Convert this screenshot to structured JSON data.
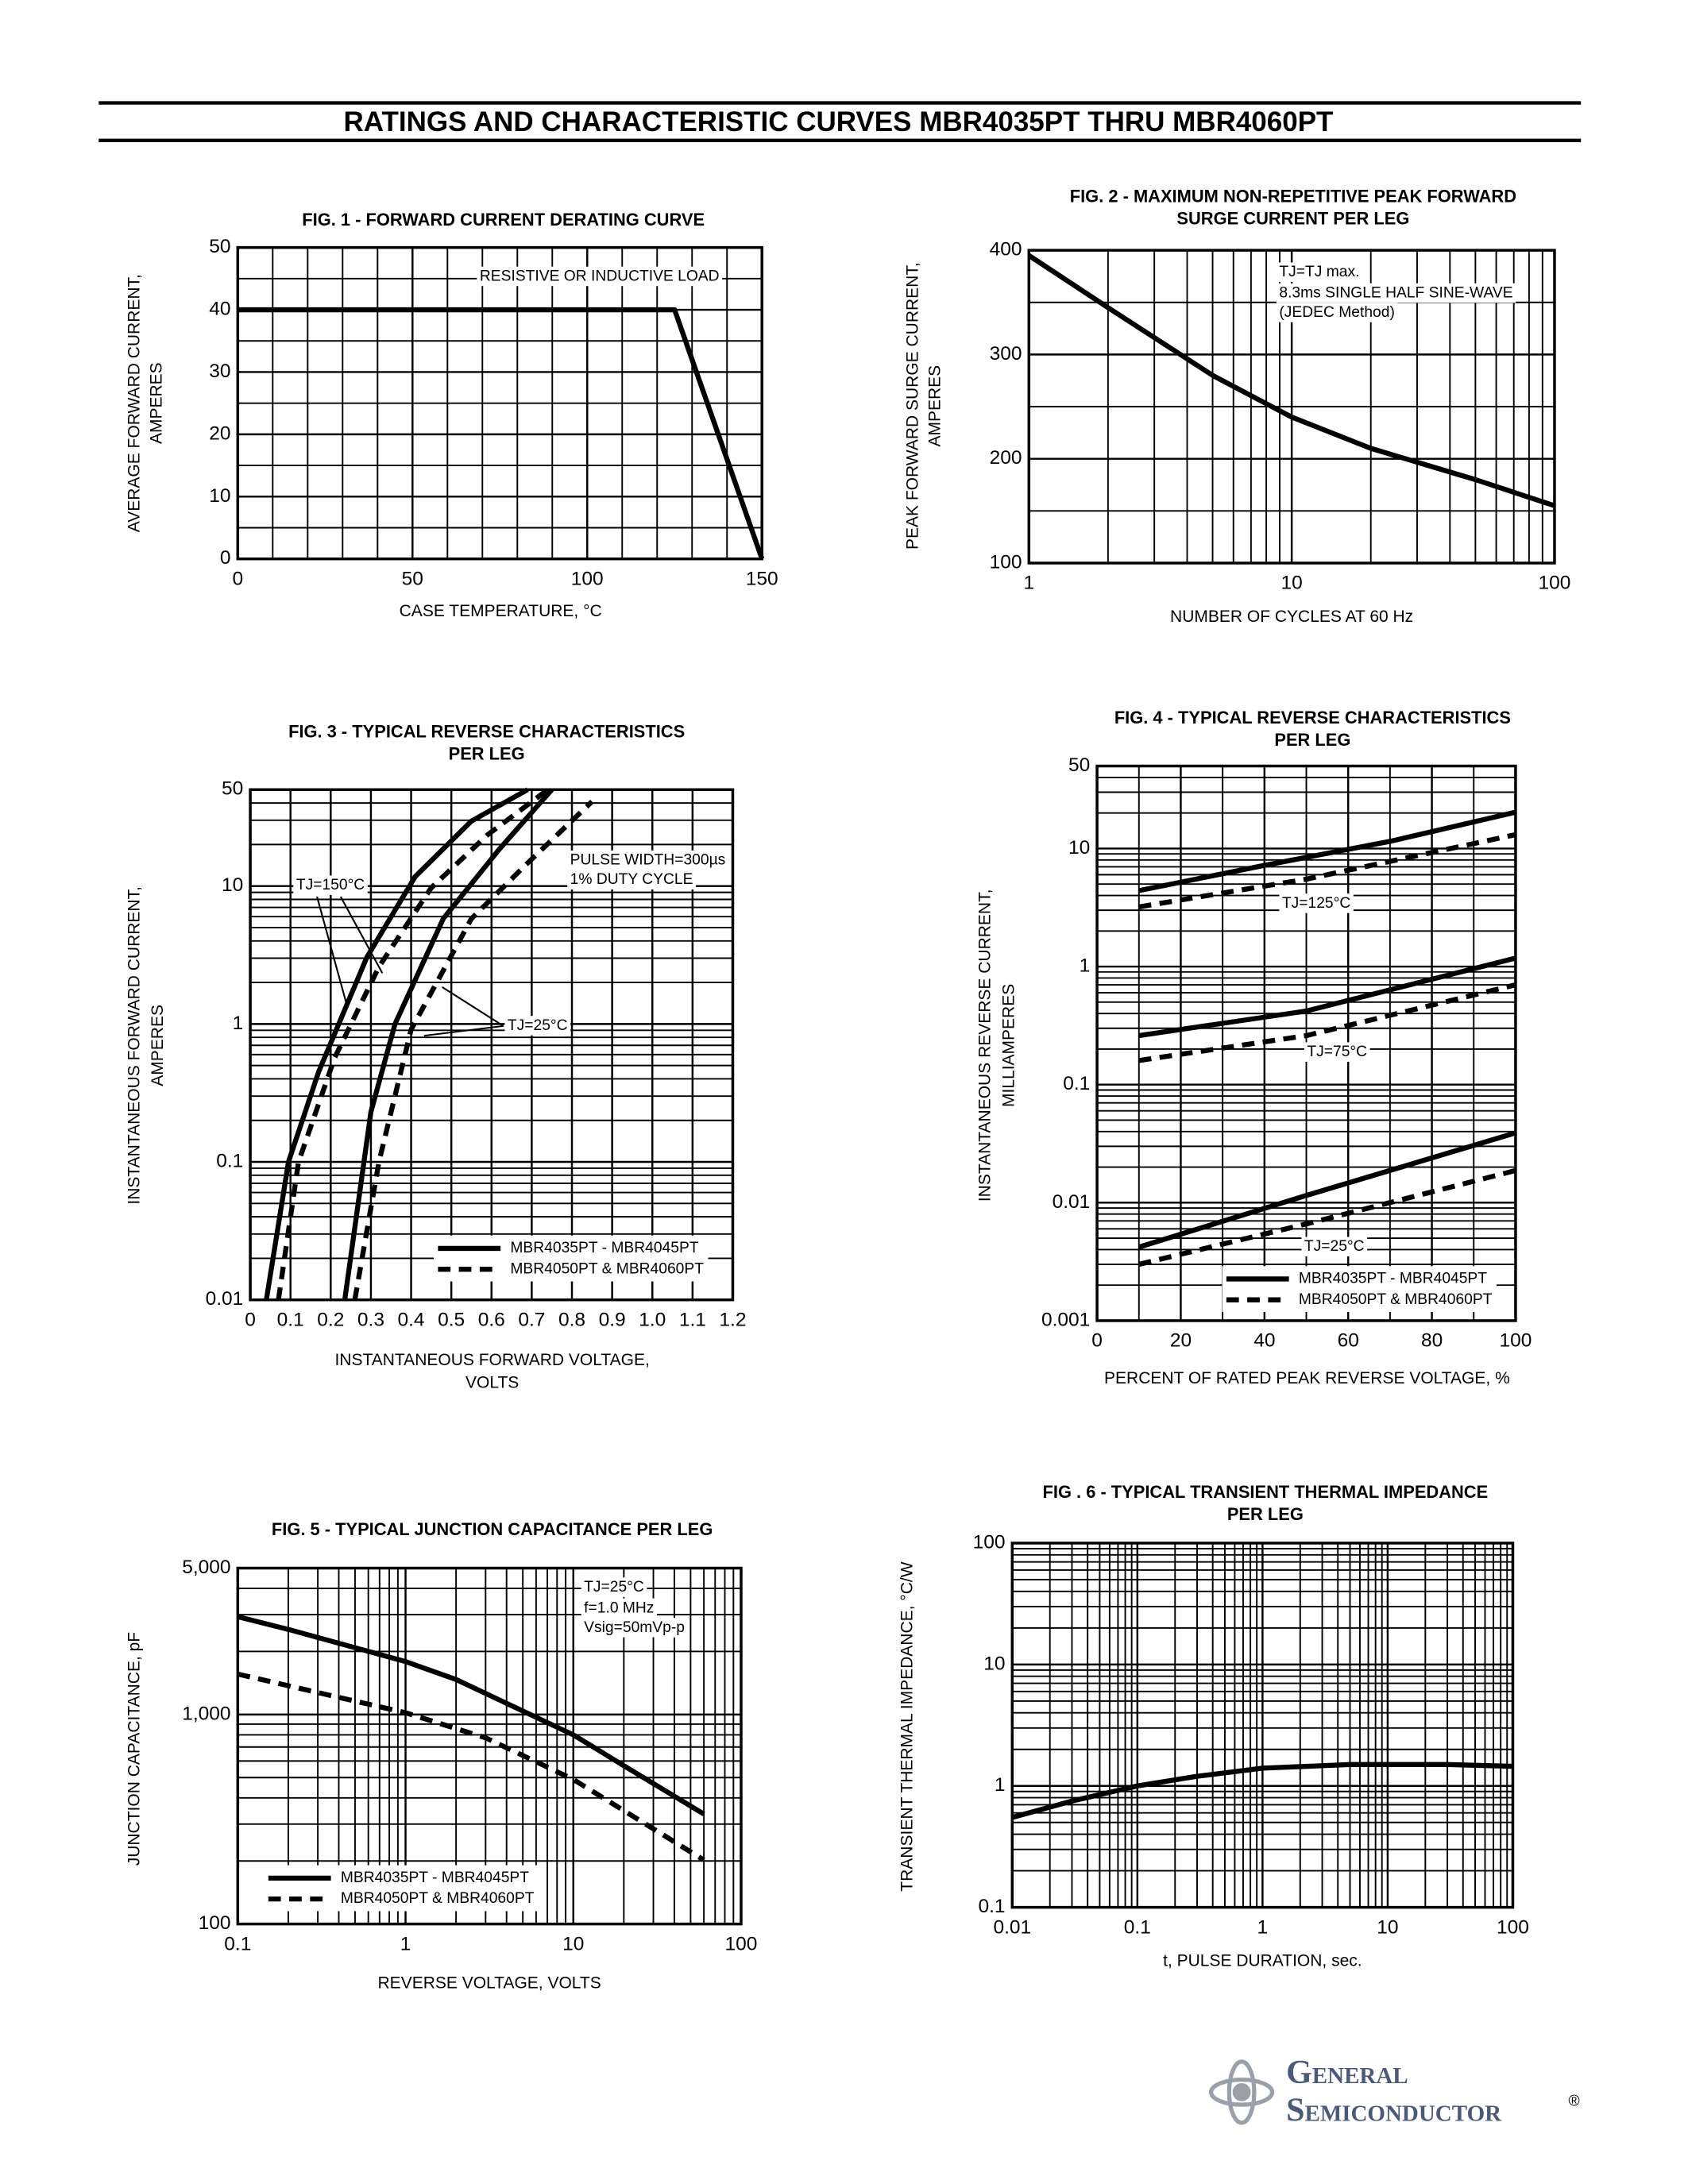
{
  "title": "RATINGS AND CHARACTERISTIC CURVES MBR4035PT THRU MBR4060PT",
  "logo": {
    "name1": "General",
    "name2": "Semiconductor",
    "mark": "®"
  },
  "chart_data": [
    {
      "type": "line",
      "title": [
        "FIG. 1 - FORWARD CURRENT DERATING CURVE"
      ],
      "xlabel": [
        "CASE TEMPERATURE, °C"
      ],
      "ylabel": [
        "AVERAGE FORWARD CURRENT,",
        "AMPERES"
      ],
      "xscale": "linear",
      "yscale": "linear",
      "xlim": [
        0,
        150
      ],
      "ylim": [
        0,
        50
      ],
      "xticks": [
        0,
        50,
        100,
        150
      ],
      "yticks": [
        0,
        10,
        20,
        30,
        40,
        50
      ],
      "grid": true,
      "annotations": [
        "RESISTIVE OR INDUCTIVE LOAD"
      ],
      "series": [
        {
          "color": "#000000",
          "style": "solid",
          "x": [
            0,
            125,
            150
          ],
          "values": [
            40,
            40,
            0
          ]
        }
      ]
    },
    {
      "type": "line",
      "title": [
        "FIG. 2 - MAXIMUM NON-REPETITIVE PEAK FORWARD",
        "SURGE CURRENT PER LEG"
      ],
      "xlabel": [
        "NUMBER OF CYCLES AT 60 Hz"
      ],
      "ylabel": [
        "PEAK FORWARD SURGE CURRENT,",
        "AMPERES"
      ],
      "xscale": "log",
      "yscale": "linear",
      "xlim": [
        1,
        100
      ],
      "ylim": [
        100,
        400
      ],
      "xticks": [
        1,
        10,
        100
      ],
      "yticks": [
        100,
        200,
        300,
        400
      ],
      "grid": true,
      "annotations": [
        "TJ=TJ max.",
        "8.3ms SINGLE HALF SINE-WAVE",
        "(JEDEC Method)"
      ],
      "series": [
        {
          "color": "#000000",
          "style": "solid",
          "x": [
            1,
            2,
            5,
            10,
            20,
            50,
            100
          ],
          "values": [
            395,
            345,
            280,
            240,
            210,
            180,
            155
          ]
        }
      ]
    },
    {
      "type": "line",
      "title": [
        "FIG. 3 - TYPICAL REVERSE CHARACTERISTICS",
        "PER LEG"
      ],
      "xlabel": [
        "INSTANTANEOUS FORWARD VOLTAGE,",
        "VOLTS"
      ],
      "ylabel": [
        "INSTANTANEOUS FORWARD CURRENT,",
        "AMPERES"
      ],
      "xscale": "linear",
      "yscale": "log",
      "xlim": [
        0,
        1.2
      ],
      "ylim": [
        0.01,
        50
      ],
      "xticks": [
        0,
        0.1,
        0.2,
        0.3,
        0.4,
        0.5,
        0.6,
        0.7,
        0.8,
        0.9,
        {
          "value": 1,
          "label": "1.0"
        },
        1.1,
        1.2
      ],
      "yticks": [
        0.01,
        0.1,
        1,
        10,
        50
      ],
      "grid": true,
      "annotations": [
        "PULSE WIDTH=300µs",
        "1% DUTY CYCLE",
        "TJ=150°C",
        "TJ=25°C"
      ],
      "legend": [
        {
          "name": "MBR4035PT - MBR4045PT",
          "style": "solid"
        },
        {
          "name": "MBR4050PT & MBR4060PT",
          "style": "dashed"
        }
      ],
      "series": [
        {
          "color": "#000000",
          "style": "solid",
          "x": [
            0.04,
            0.095,
            0.17,
            0.29,
            0.41,
            0.55,
            0.69
          ],
          "values": [
            0.01,
            0.1,
            0.45,
            3.05,
            11.7,
            29.6,
            50
          ]
        },
        {
          "color": "#000000",
          "style": "dashed",
          "x": [
            0.07,
            0.12,
            0.21,
            0.32,
            0.45,
            0.59,
            0.74
          ],
          "values": [
            0.01,
            0.1,
            0.57,
            2.6,
            9.7,
            23.5,
            50
          ]
        },
        {
          "color": "#000000",
          "style": "solid",
          "x": [
            0.235,
            0.3,
            0.36,
            0.48,
            0.62,
            0.75
          ],
          "values": [
            0.01,
            0.23,
            1,
            5.8,
            18.6,
            50
          ]
        },
        {
          "color": "#000000",
          "style": "dashed",
          "x": [
            0.26,
            0.32,
            0.4,
            0.55,
            0.69,
            0.85
          ],
          "values": [
            0.01,
            0.1,
            0.91,
            5.8,
            14.7,
            41
          ]
        }
      ]
    },
    {
      "type": "line",
      "title": [
        "FIG. 4 - TYPICAL REVERSE CHARACTERISTICS",
        "PER LEG"
      ],
      "xlabel": [
        "PERCENT OF RATED PEAK REVERSE VOLTAGE, %"
      ],
      "ylabel": [
        "INSTANTANEOUS REVERSE CURRENT,",
        "MILLIAMPERES"
      ],
      "xscale": "linear",
      "yscale": "log",
      "xlim": [
        0,
        100
      ],
      "ylim": [
        0.001,
        50
      ],
      "xticks": [
        0,
        20,
        40,
        60,
        80,
        100
      ],
      "yticks": [
        0.001,
        0.01,
        0.1,
        1,
        10,
        50
      ],
      "grid": true,
      "annotations": [
        "TJ=125°C",
        "TJ=75°C",
        "TJ=25°C"
      ],
      "legend": [
        {
          "name": "MBR4035PT - MBR4045PT",
          "style": "solid"
        },
        {
          "name": "MBR4050PT & MBR4060PT",
          "style": "dashed"
        }
      ],
      "series": [
        {
          "color": "#000000",
          "style": "solid",
          "x": [
            10,
            40,
            70,
            100
          ],
          "values": [
            4.4,
            7.2,
            11.5,
            20.3
          ]
        },
        {
          "color": "#000000",
          "style": "dashed",
          "x": [
            10,
            50,
            100
          ],
          "values": [
            3.2,
            5.5,
            13.1
          ]
        },
        {
          "color": "#000000",
          "style": "solid",
          "x": [
            10,
            50,
            100
          ],
          "values": [
            0.26,
            0.42,
            1.18
          ]
        },
        {
          "color": "#000000",
          "style": "dashed",
          "x": [
            10,
            50,
            100
          ],
          "values": [
            0.16,
            0.26,
            0.7
          ]
        },
        {
          "color": "#000000",
          "style": "solid",
          "x": [
            10,
            50,
            100
          ],
          "values": [
            0.0042,
            0.0115,
            0.039
          ]
        },
        {
          "color": "#000000",
          "style": "dashed",
          "x": [
            10,
            50,
            100
          ],
          "values": [
            0.003,
            0.0066,
            0.0187
          ]
        }
      ]
    },
    {
      "type": "line",
      "title": [
        "FIG. 5 - TYPICAL JUNCTION CAPACITANCE PER LEG"
      ],
      "xlabel": [
        "REVERSE VOLTAGE, VOLTS"
      ],
      "ylabel": [
        "JUNCTION CAPACITANCE, pF"
      ],
      "xscale": "log",
      "yscale": "log",
      "xlim": [
        0.1,
        100
      ],
      "ylim": [
        100,
        5000
      ],
      "xticks": [
        0.1,
        1,
        10,
        100
      ],
      "yticks": [
        100,
        {
          "value": 1000,
          "label": "1,000"
        },
        {
          "value": 5000,
          "label": "5,000"
        }
      ],
      "grid": true,
      "annotations": [
        "TJ=25°C",
        "f=1.0 MHz",
        "Vsig=50mVp-p"
      ],
      "legend": [
        {
          "name": "MBR4035PT - MBR4045PT",
          "style": "solid"
        },
        {
          "name": "MBR4050PT & MBR4060PT",
          "style": "dashed"
        }
      ],
      "series": [
        {
          "color": "#000000",
          "style": "solid",
          "x": [
            0.1,
            0.2,
            1,
            2,
            10,
            20,
            60
          ],
          "values": [
            2930,
            2550,
            1790,
            1470,
            800,
            570,
            335
          ]
        },
        {
          "color": "#000000",
          "style": "dashed",
          "x": [
            0.1,
            1,
            3,
            10,
            60
          ],
          "values": [
            1560,
            1020,
            774,
            490,
            202
          ]
        }
      ]
    },
    {
      "type": "line",
      "title": [
        "FIG . 6 - TYPICAL TRANSIENT THERMAL IMPEDANCE",
        "PER LEG"
      ],
      "xlabel": [
        "t, PULSE DURATION, sec."
      ],
      "ylabel": [
        "TRANSIENT THERMAL IMPEDANCE, °C/W"
      ],
      "xscale": "log",
      "yscale": "log",
      "xlim": [
        0.01,
        100
      ],
      "ylim": [
        0.1,
        100
      ],
      "xticks": [
        0.01,
        0.1,
        1,
        10,
        100
      ],
      "yticks": [
        0.1,
        1,
        10,
        100
      ],
      "grid": true,
      "series": [
        {
          "color": "#000000",
          "style": "solid",
          "x": [
            0.01,
            0.03,
            0.1,
            0.3,
            1,
            5,
            30,
            100
          ],
          "values": [
            0.55,
            0.75,
            1.0,
            1.2,
            1.4,
            1.5,
            1.5,
            1.45
          ]
        }
      ]
    }
  ]
}
